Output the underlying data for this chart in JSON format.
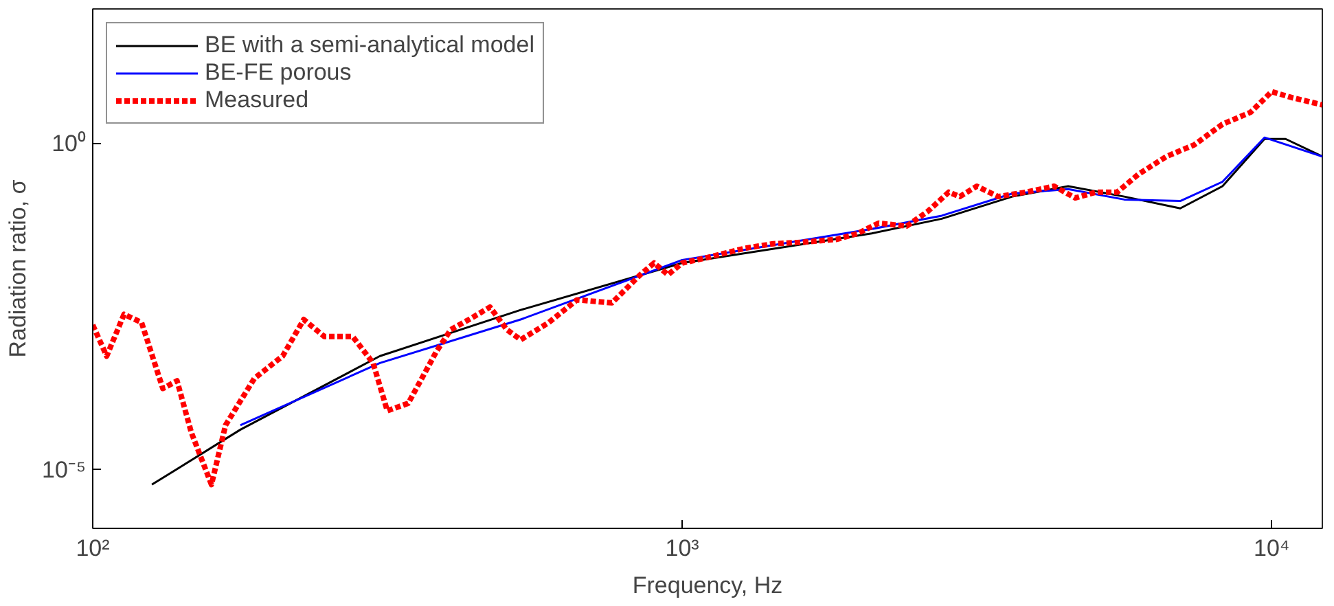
{
  "chart_data": {
    "type": "line",
    "xlabel": "Frequency, Hz",
    "ylabel": "Radiation ratio, σ",
    "log": "xy",
    "grid": false,
    "legend": "top left",
    "marker": "none",
    "xlim": [
      100,
      12190
    ],
    "ylim": [
      1.26e-06,
      115
    ],
    "xticks": [
      {
        "value": 100,
        "label": "10²"
      },
      {
        "value": 1000,
        "label": "10³"
      },
      {
        "value": 10000,
        "label": "10⁴"
      }
    ],
    "yticks": [
      {
        "value": 1e-05,
        "label": "10⁻⁵"
      },
      {
        "value": 1,
        "label": "10⁰"
      }
    ],
    "series": [
      {
        "name": "BE with a semi-analytical model",
        "color": "#000000",
        "line_style": "solid",
        "x": [
          126,
          178,
          307,
          532,
          1000,
          2096,
          2756,
          3630,
          4517,
          5623,
          6998,
          8254,
          9725,
          10560,
          12190
        ],
        "values": [
          5.9e-06,
          4.1e-05,
          0.00055,
          0.0028,
          0.0147,
          0.0417,
          0.07,
          0.153,
          0.221,
          0.153,
          0.101,
          0.221,
          1.17,
          1.17,
          0.63
        ]
      },
      {
        "name": "BE-FE porous",
        "color": "#0000ff",
        "line_style": "solid",
        "x": [
          178,
          307,
          532,
          1000,
          2096,
          2756,
          3630,
          4517,
          5623,
          6998,
          8254,
          9725,
          12190
        ],
        "values": [
          4.8e-05,
          0.00043,
          0.002,
          0.0163,
          0.0487,
          0.078,
          0.17,
          0.199,
          0.138,
          0.131,
          0.258,
          1.23,
          0.63
        ]
      },
      {
        "name": "Measured",
        "color": "#ff0000",
        "line_style": "dashed",
        "x": [
          100,
          105.6,
          113,
          121,
          131.5,
          139,
          147,
          159,
          168,
          188,
          210,
          228,
          247,
          276,
          299,
          316,
          343,
          383,
          405,
          439,
          472,
          504,
          532,
          594,
          663,
          760,
          849,
          896,
          946,
          1000,
          1086,
          1280,
          1428,
          1594,
          1828,
          1985,
          2154,
          2404,
          2611,
          2833,
          2958,
          3162,
          3435,
          3831,
          4276,
          4642,
          5038,
          5470,
          5941,
          6629,
          7391,
          8254,
          9212,
          10000,
          10860,
          12190
        ],
        "values": [
          0.00165,
          0.00055,
          0.0024,
          0.0018,
          0.000175,
          0.00023,
          3.7e-05,
          5.9e-06,
          4.8e-05,
          0.00025,
          0.00055,
          0.002,
          0.0011,
          0.0011,
          0.00043,
          8e-05,
          0.000104,
          0.00065,
          0.0014,
          0.0021,
          0.0031,
          0.0014,
          0.00098,
          0.0018,
          0.004,
          0.0036,
          0.0097,
          0.0147,
          0.0097,
          0.0147,
          0.0172,
          0.0248,
          0.029,
          0.0305,
          0.0338,
          0.0417,
          0.06,
          0.054,
          0.091,
          0.179,
          0.153,
          0.221,
          0.153,
          0.179,
          0.221,
          0.146,
          0.179,
          0.179,
          0.335,
          0.63,
          0.95,
          1.97,
          3.0,
          6.2,
          5.0,
          3.9
        ]
      }
    ]
  }
}
